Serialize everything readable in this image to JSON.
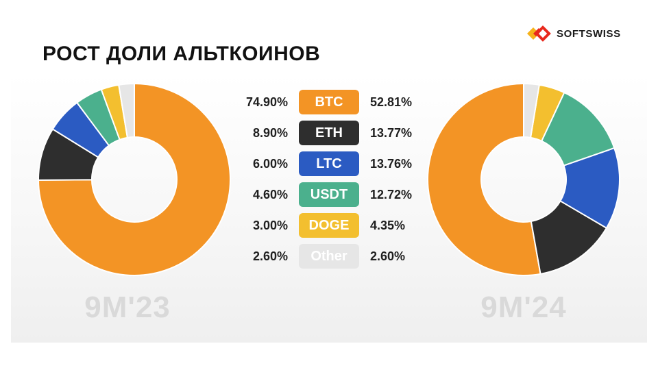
{
  "header": {
    "title": "РОСТ ДОЛИ АЛЬТКОИНОВ",
    "logo_text": "SOFTSWISS"
  },
  "chart_data": {
    "type": "pie",
    "categories": [
      "BTC",
      "ETH",
      "LTC",
      "USDT",
      "DOGE",
      "Other"
    ],
    "colors": [
      "#F39425",
      "#2E2E2E",
      "#2B5BC2",
      "#4BB08D",
      "#F3BF2F",
      "#E6E6E6"
    ],
    "series": [
      {
        "name": "9M'23",
        "values": [
          74.9,
          8.9,
          6.0,
          4.6,
          3.0,
          2.6
        ],
        "labels": [
          "74.90%",
          "8.90%",
          "6.00%",
          "4.60%",
          "3.00%",
          "2.60%"
        ]
      },
      {
        "name": "9M'24",
        "values": [
          52.81,
          13.77,
          13.76,
          12.72,
          4.35,
          2.6
        ],
        "labels": [
          "52.81%",
          "13.77%",
          "13.76%",
          "12.72%",
          "4.35%",
          "2.60%"
        ]
      }
    ]
  }
}
